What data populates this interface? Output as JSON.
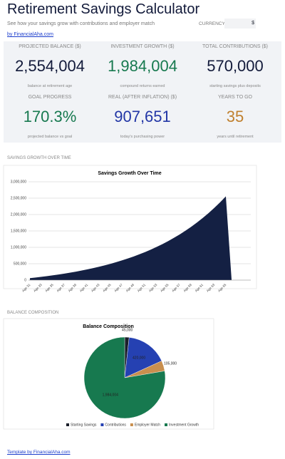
{
  "header": {
    "title": "Retirement Savings Calculator",
    "subtitle": "See how your savings grow with contributions and employer match",
    "currency_label": "CURRENCY",
    "currency_symbol": "$",
    "byline": "by FinancialAha.com"
  },
  "metrics": [
    {
      "label": "PROJECTED BALANCE ($)",
      "value": "2,554,004",
      "caption": "balance at retirement age"
    },
    {
      "label": "INVESTMENT GROWTH ($)",
      "value": "1,984,004",
      "caption": "compound returns earned"
    },
    {
      "label": "TOTAL CONTRIBUTIONS ($)",
      "value": "570,000",
      "caption": "starting savings plus deposits"
    },
    {
      "label": "GOAL PROGRESS",
      "value": "170.3%",
      "caption": "projected balance vs goal"
    },
    {
      "label": "REAL (AFTER INFLATION) ($)",
      "value": "907,651",
      "caption": "today's purchasing power"
    },
    {
      "label": "YEARS TO GO",
      "value": "35",
      "caption": "years until retirement"
    }
  ],
  "sections": [
    "SAVINGS GROWTH OVER TIME",
    "BALANCE COMPOSITION"
  ],
  "chart_data": [
    {
      "type": "area",
      "title": "Savings Growth Over Time",
      "color": "#142043",
      "grid": true,
      "categories": [
        "Age 31",
        null,
        "Age 33",
        null,
        "Age 35",
        null,
        "Age 37",
        null,
        "Age 39",
        null,
        "Age 41",
        null,
        "Age 43",
        null,
        "Age 45",
        null,
        "Age 47",
        null,
        "Age 49",
        null,
        "Age 51",
        null,
        "Age 53",
        null,
        "Age 55",
        null,
        "Age 57",
        null,
        "Age 59",
        null,
        "Age 61",
        null,
        "Age 63",
        null,
        "Age 65",
        null,
        null,
        null,
        null
      ],
      "values": [
        60000,
        79000,
        100000,
        122000,
        146000,
        172000,
        199000,
        228000,
        259000,
        293000,
        329000,
        367000,
        408000,
        452000,
        498000,
        549000,
        602000,
        660000,
        721000,
        787000,
        857000,
        932000,
        1013000,
        1099000,
        1191000,
        1290000,
        1395000,
        1508000,
        1629000,
        1758000,
        1896000,
        2044000,
        2203000,
        2372000,
        2554004,
        0,
        0,
        0,
        0
      ],
      "ylim": [
        0,
        3000000
      ],
      "yticks": [
        0,
        {
          "value": 500000,
          "label": "500,000"
        },
        {
          "value": 1000000,
          "label": "1,000,000"
        },
        {
          "value": 1500000,
          "label": "1,500,000"
        },
        {
          "value": 2000000,
          "label": "2,000,000"
        },
        {
          "value": 2500000,
          "label": "2,500,000"
        },
        {
          "value": 3000000,
          "label": "3,000,000"
        }
      ]
    },
    {
      "type": "pie",
      "title": "Balance Composition",
      "legend": "bottom",
      "categories": [
        "Starting Savings",
        "Contributions",
        "Employer Match",
        "Investment Growth"
      ],
      "values": [
        45000,
        420000,
        105000,
        1984004
      ],
      "value_labels": [
        "45,000",
        "420,000",
        "105,000",
        "1,984,004"
      ],
      "colors": [
        "#1b1f2a",
        "#2541b2",
        "#c98f4e",
        "#17794f"
      ]
    }
  ],
  "footer": "Template by FinancialAha.com"
}
